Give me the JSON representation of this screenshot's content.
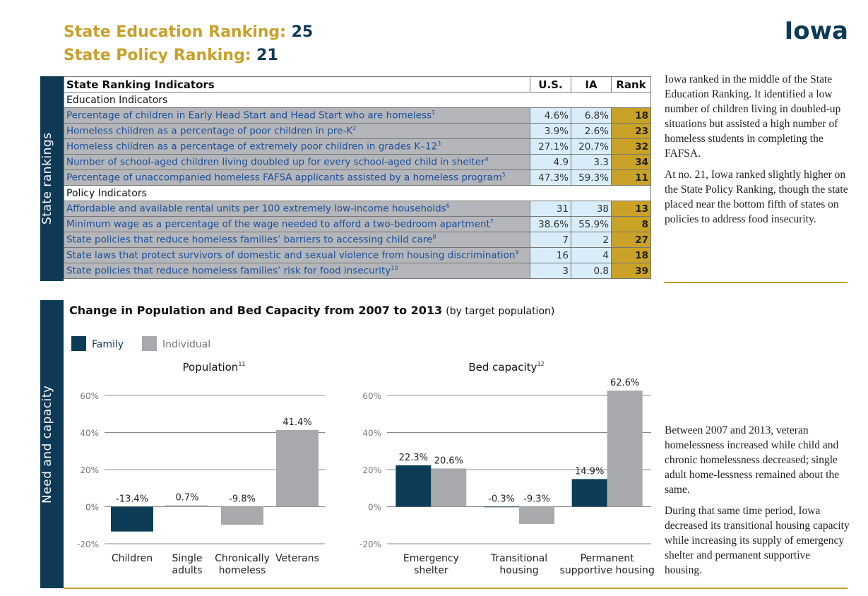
{
  "header": {
    "edu_label": "State Education Ranking:",
    "edu_rank": "25",
    "policy_label": "State Policy Ranking:",
    "policy_rank": "21",
    "state": "Iowa"
  },
  "side_labels": [
    "State rankings",
    "Need and capacity"
  ],
  "table": {
    "columns": [
      "State Ranking Indicators",
      "U.S.",
      "IA",
      "Rank"
    ],
    "sections": [
      {
        "title": "Education Indicators",
        "rows": [
          {
            "label": "Percentage of children in Early Head Start and Head Start who are homeless",
            "note": "1",
            "us": "4.6%",
            "ia": "6.8%",
            "rank": 18
          },
          {
            "label": "Homeless children as a percentage of poor children in pre-K",
            "note": "2",
            "us": "3.9%",
            "ia": "2.6%",
            "rank": 23
          },
          {
            "label": "Homeless children as a percentage of extremely poor children in grades K–12",
            "note": "3",
            "us": "27.1%",
            "ia": "20.7%",
            "rank": 32
          },
          {
            "label": "Number of school-aged children living doubled up for every school-aged child in shelter",
            "note": "4",
            "us": "4.9",
            "ia": "3.3",
            "rank": 34
          },
          {
            "label": "Percentage of unaccompanied homeless FAFSA applicants assisted by a homeless program",
            "note": "5",
            "us": "47.3%",
            "ia": "59.3%",
            "rank": 11
          }
        ]
      },
      {
        "title": "Policy Indicators",
        "rows": [
          {
            "label": "Affordable and available rental units per 100 extremely low-income households",
            "note": "6",
            "us": "31",
            "ia": "38",
            "rank": 13
          },
          {
            "label": "Minimum wage as a percentage of the wage needed to afford a two-bedroom apartment",
            "note": "7",
            "us": "38.6%",
            "ia": "55.9%",
            "rank": 8
          },
          {
            "label": "State policies that reduce homeless families’ barriers to accessing child care",
            "note": "8",
            "us": "7",
            "ia": "2",
            "rank": 27
          },
          {
            "label": "State laws that protect survivors of domestic and sexual violence from housing discrimination",
            "note": "9",
            "us": "16",
            "ia": "4",
            "rank": 18
          },
          {
            "label": "State policies that reduce homeless families’ risk for food insecurity",
            "note": "10",
            "us": "3",
            "ia": "0.8",
            "rank": 39
          }
        ]
      }
    ]
  },
  "notes": [
    "Iowa ranked in the middle of the State Education Ranking. It identified a low number of children living in doubled-up situations but assisted a high number of homeless students in completing the FAFSA.",
    "At no. 21, Iowa ranked slightly higher on the State Policy Ranking, though the state placed near the bottom fifth of states on policies to address food insecurity.",
    "Between 2007 and 2013, veteran homelessness increased while child and chronic homelessness decreased; single adult home-lessness remained about the same.",
    "During that same time period, Iowa decreased its transitional housing capacity while increasing its supply of emergency shelter and permanent supportive housing."
  ],
  "section": {
    "title": "Change in Population and Bed Capacity from 2007 to 2013",
    "subtitle": "(by target population)"
  },
  "chart_data": [
    {
      "type": "bar",
      "title": "Population",
      "title_note": "11",
      "categories": [
        "Children",
        "Single\nadults",
        "Chronically\nhomeless",
        "Veterans"
      ],
      "series": [
        {
          "name": "Family",
          "color": "#0d3d56",
          "values": [
            -13.4,
            null,
            null,
            null
          ],
          "value_labels": [
            "-13.4%",
            null,
            null,
            null
          ]
        },
        {
          "name": "Individual",
          "color": "#a7a9ac",
          "values": [
            null,
            0.7,
            -9.8,
            41.4
          ],
          "value_labels": [
            null,
            "0.7%",
            "-9.8%",
            "41.4%"
          ]
        }
      ],
      "ylim": [
        -20,
        60
      ],
      "yticks": [
        {
          "value": -20,
          "label": "-20%"
        },
        {
          "value": 0,
          "label": "0%"
        },
        {
          "value": 20,
          "label": "20%"
        },
        {
          "value": 40,
          "label": "40%"
        },
        {
          "value": 60,
          "label": "60%"
        }
      ],
      "grid": true
    },
    {
      "type": "bar",
      "title": "Bed capacity",
      "title_note": "12",
      "categories": [
        "Emergency\nshelter",
        "Transitional\nhousing",
        "Permanent\nsupportive housing"
      ],
      "series": [
        {
          "name": "Family",
          "color": "#0d3d56",
          "values": [
            22.3,
            -0.3,
            14.9
          ],
          "value_labels": [
            "22.3%",
            "-0.3%",
            "14.9%"
          ]
        },
        {
          "name": "Individual",
          "color": "#a7a9ac",
          "values": [
            20.6,
            -9.3,
            62.6
          ],
          "value_labels": [
            "20.6%",
            "-9.3%",
            "62.6%"
          ]
        }
      ],
      "ylim": [
        -20,
        60
      ],
      "yticks": [
        {
          "value": -20,
          "label": "-20%"
        },
        {
          "value": 0,
          "label": "0%"
        },
        {
          "value": 20,
          "label": "20%"
        },
        {
          "value": 40,
          "label": "40%"
        },
        {
          "value": 60,
          "label": "60%"
        }
      ],
      "grid": true
    }
  ]
}
